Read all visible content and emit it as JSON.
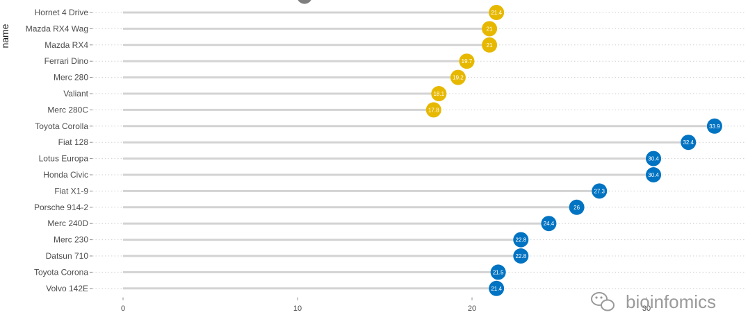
{
  "chart_data": {
    "type": "lollipop",
    "ylabel": "name",
    "xlim": [
      0,
      35
    ],
    "x_ticks": [
      0,
      10,
      20,
      30
    ],
    "grid": "horizontal-dotted",
    "colors": {
      "gray": "#7f7f7f",
      "gold": "#e7b800",
      "blue": "#0073c2",
      "stem": "#d3d3d3"
    },
    "rows": [
      {
        "name": "Hornet 4 Drive",
        "value": 21.4,
        "label": "21.4",
        "group": "gold"
      },
      {
        "name": "Mazda RX4 Wag",
        "value": 21.0,
        "label": "21",
        "group": "gold"
      },
      {
        "name": "Mazda RX4",
        "value": 21.0,
        "label": "21",
        "group": "gold"
      },
      {
        "name": "Ferrari Dino",
        "value": 19.7,
        "label": "19.7",
        "group": "gold"
      },
      {
        "name": "Merc 280",
        "value": 19.2,
        "label": "19.2",
        "group": "gold"
      },
      {
        "name": "Valiant",
        "value": 18.1,
        "label": "18.1",
        "group": "gold"
      },
      {
        "name": "Merc 280C",
        "value": 17.8,
        "label": "17.8",
        "group": "gold"
      },
      {
        "name": "Toyota Corolla",
        "value": 33.9,
        "label": "33.9",
        "group": "blue"
      },
      {
        "name": "Fiat 128",
        "value": 32.4,
        "label": "32.4",
        "group": "blue"
      },
      {
        "name": "Lotus Europa",
        "value": 30.4,
        "label": "30.4",
        "group": "blue"
      },
      {
        "name": "Honda Civic",
        "value": 30.4,
        "label": "30.4",
        "group": "blue"
      },
      {
        "name": "Fiat X1-9",
        "value": 27.3,
        "label": "27.3",
        "group": "blue"
      },
      {
        "name": "Porsche 914-2",
        "value": 26.0,
        "label": "26",
        "group": "blue"
      },
      {
        "name": "Merc 240D",
        "value": 24.4,
        "label": "24.4",
        "group": "blue"
      },
      {
        "name": "Merc 230",
        "value": 22.8,
        "label": "22.8",
        "group": "blue"
      },
      {
        "name": "Datsun 710",
        "value": 22.8,
        "label": "22.8",
        "group": "blue"
      },
      {
        "name": "Toyota Corona",
        "value": 21.5,
        "label": "21.5",
        "group": "blue"
      },
      {
        "name": "Volvo 142E",
        "value": 21.4,
        "label": "21.4",
        "group": "blue"
      }
    ],
    "partial_top_point": {
      "value": 10.4,
      "group": "gray"
    }
  },
  "watermark": {
    "text": "bioinfomics",
    "icon": "wechat-icon"
  }
}
